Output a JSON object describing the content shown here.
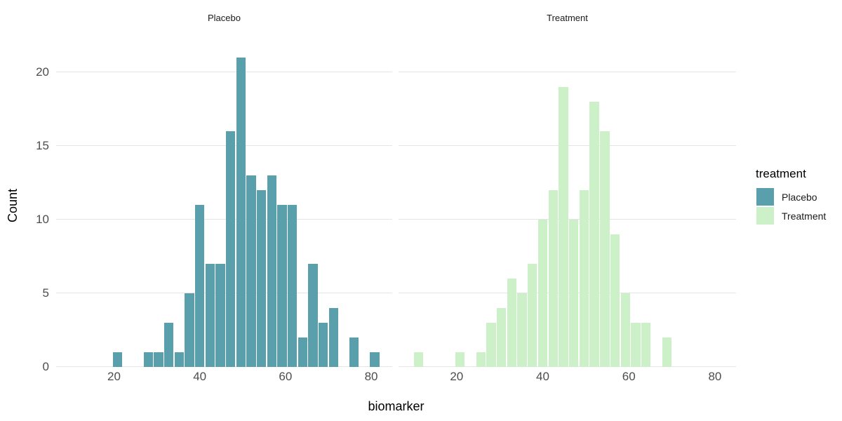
{
  "chart_data": {
    "type": "bar",
    "subtype": "faceted-histogram",
    "title": "",
    "xlabel": "biomarker",
    "ylabel": "Count",
    "x_ticks": [
      20,
      40,
      60,
      80
    ],
    "y_ticks": [
      0,
      5,
      10,
      15,
      20
    ],
    "x_range": [
      6.5,
      84.9
    ],
    "y_range": [
      0,
      22.05
    ],
    "grid": "horizontal-only",
    "legend_position": "right",
    "bin_width": 2.4,
    "facets": [
      {
        "label": "Placebo",
        "color": "#5AA0AC",
        "bin_start": 19.6,
        "counts": [
          1,
          0,
          0,
          1,
          1,
          3,
          1,
          5,
          11,
          7,
          7,
          16,
          21,
          13,
          12,
          13,
          11,
          11,
          2,
          7,
          3,
          4,
          0,
          2,
          0,
          1
        ]
      },
      {
        "label": "Treatment",
        "color": "#CCF0C8",
        "bin_start": 10.0,
        "counts": [
          1,
          0,
          0,
          0,
          1,
          0,
          1,
          3,
          4,
          6,
          5,
          7,
          10,
          12,
          19,
          10,
          12,
          18,
          16,
          9,
          5,
          3,
          3,
          0,
          2
        ]
      }
    ],
    "legend": {
      "title": "treatment",
      "entries": [
        {
          "label": "Placebo",
          "color": "#5AA0AC"
        },
        {
          "label": "Treatment",
          "color": "#CCF0C8"
        }
      ]
    }
  }
}
